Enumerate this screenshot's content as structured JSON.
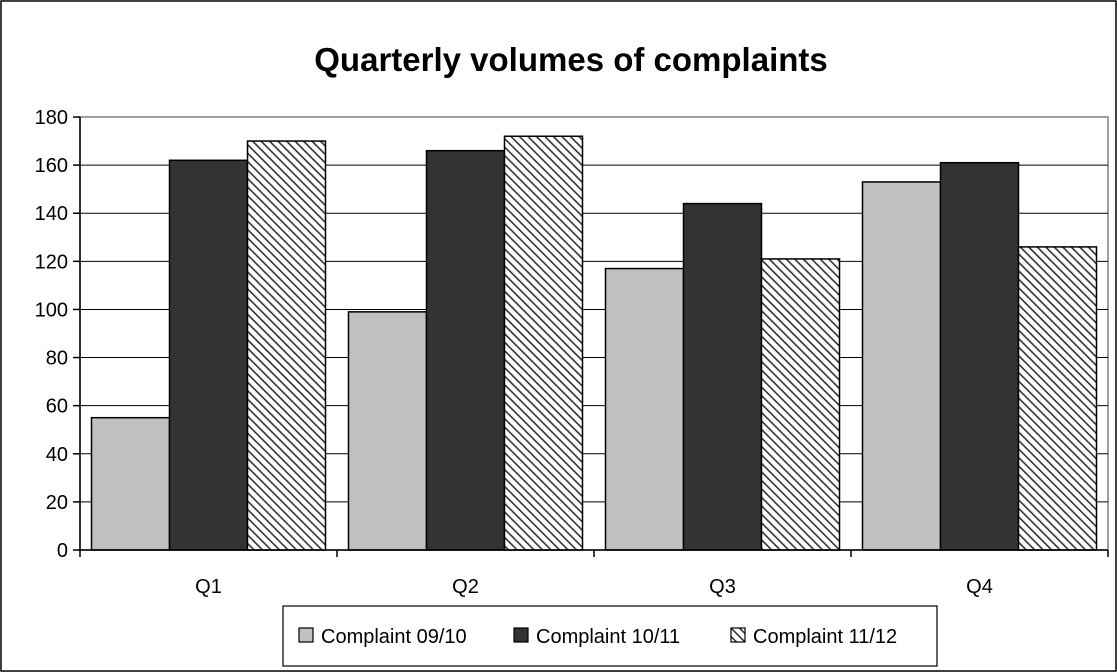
{
  "chart_data": {
    "type": "bar",
    "title": "Quarterly volumes of complaints",
    "xlabel": "",
    "ylabel": "",
    "categories": [
      "Q1",
      "Q2",
      "Q3",
      "Q4"
    ],
    "series": [
      {
        "name": "Complaint 09/10",
        "values": [
          55,
          99,
          117,
          153
        ],
        "color": "#c0c0c0",
        "pattern": "solid"
      },
      {
        "name": "Complaint 10/11",
        "values": [
          162,
          166,
          144,
          161
        ],
        "color": "#333333",
        "pattern": "solid"
      },
      {
        "name": "Complaint 11/12",
        "values": [
          170,
          172,
          121,
          126
        ],
        "color": "#ffffff",
        "pattern": "diagonal-hatch"
      }
    ],
    "ylim": [
      0,
      180
    ],
    "yticks": [
      0,
      20,
      40,
      60,
      80,
      100,
      120,
      140,
      160,
      180
    ],
    "grid": true,
    "legend_position": "bottom"
  }
}
